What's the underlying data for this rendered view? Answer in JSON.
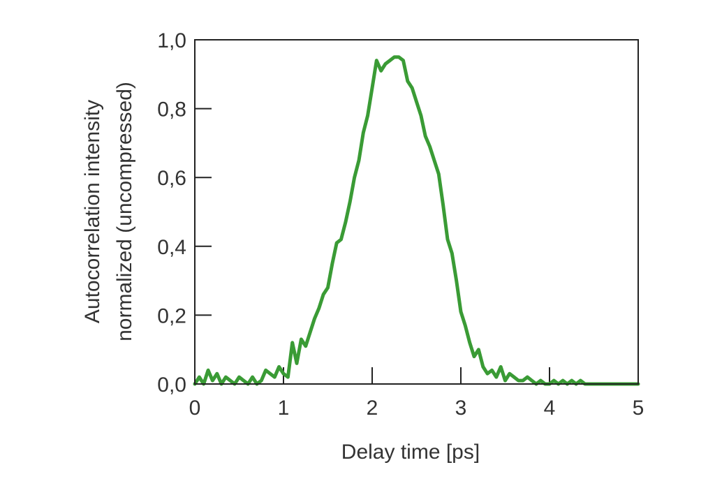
{
  "chart_data": {
    "type": "line",
    "title": "",
    "xlabel": "Delay time [ps]",
    "ylabel_line1": "Autocorrelation intensity",
    "ylabel_line2": "normalized (uncompressed)",
    "xlim": [
      0,
      5
    ],
    "ylim": [
      0,
      1
    ],
    "x_ticks": [
      {
        "value": 0,
        "label": "0"
      },
      {
        "value": 1,
        "label": "1"
      },
      {
        "value": 2,
        "label": "2"
      },
      {
        "value": 3,
        "label": "3"
      },
      {
        "value": 4,
        "label": "4"
      },
      {
        "value": 5,
        "label": "5"
      }
    ],
    "y_ticks": [
      {
        "value": 0.0,
        "label": "0,0"
      },
      {
        "value": 0.2,
        "label": "0,2"
      },
      {
        "value": 0.4,
        "label": "0,4"
      },
      {
        "value": 0.6,
        "label": "0,6"
      },
      {
        "value": 0.8,
        "label": "0,8"
      },
      {
        "value": 1.0,
        "label": "1,0"
      }
    ],
    "grid": false,
    "legend": "none",
    "series": [
      {
        "color": "#3a9b35",
        "x": [
          0.0,
          0.05,
          0.1,
          0.15,
          0.2,
          0.25,
          0.3,
          0.35,
          0.4,
          0.45,
          0.5,
          0.55,
          0.6,
          0.65,
          0.7,
          0.75,
          0.8,
          0.85,
          0.9,
          0.95,
          1.0,
          1.05,
          1.1,
          1.15,
          1.2,
          1.25,
          1.3,
          1.35,
          1.4,
          1.45,
          1.5,
          1.55,
          1.6,
          1.65,
          1.7,
          1.75,
          1.8,
          1.85,
          1.9,
          1.95,
          2.0,
          2.05,
          2.1,
          2.15,
          2.2,
          2.25,
          2.3,
          2.35,
          2.4,
          2.45,
          2.5,
          2.55,
          2.6,
          2.65,
          2.7,
          2.75,
          2.8,
          2.85,
          2.9,
          2.95,
          3.0,
          3.05,
          3.1,
          3.15,
          3.2,
          3.25,
          3.3,
          3.35,
          3.4,
          3.45,
          3.5,
          3.55,
          3.6,
          3.65,
          3.7,
          3.75,
          3.8,
          3.85,
          3.9,
          3.95,
          4.0,
          4.05,
          4.1,
          4.15,
          4.2,
          4.25,
          4.3,
          4.35,
          4.4,
          4.45,
          4.5,
          4.55,
          4.6,
          4.65,
          4.7,
          4.75,
          4.8,
          4.85,
          4.9,
          4.95,
          5.0
        ],
        "y": [
          0.0,
          0.02,
          0.0,
          0.04,
          0.01,
          0.03,
          0.0,
          0.02,
          0.01,
          0.0,
          0.02,
          0.01,
          0.0,
          0.02,
          0.0,
          0.01,
          0.04,
          0.03,
          0.02,
          0.05,
          0.03,
          0.02,
          0.12,
          0.06,
          0.13,
          0.11,
          0.15,
          0.19,
          0.22,
          0.26,
          0.28,
          0.35,
          0.41,
          0.42,
          0.47,
          0.53,
          0.6,
          0.65,
          0.73,
          0.78,
          0.86,
          0.94,
          0.91,
          0.93,
          0.94,
          0.95,
          0.95,
          0.94,
          0.88,
          0.86,
          0.82,
          0.78,
          0.72,
          0.69,
          0.65,
          0.61,
          0.52,
          0.42,
          0.38,
          0.3,
          0.21,
          0.17,
          0.12,
          0.08,
          0.1,
          0.05,
          0.03,
          0.04,
          0.02,
          0.05,
          0.01,
          0.03,
          0.02,
          0.01,
          0.01,
          0.02,
          0.01,
          0.0,
          0.01,
          0.0,
          0.0,
          0.01,
          0.0,
          0.01,
          0.0,
          0.01,
          0.0,
          0.01,
          0.0,
          0.0,
          0.0,
          0.0,
          0.0,
          0.0,
          0.0,
          0.0,
          0.0,
          0.0,
          0.0,
          0.0,
          0.0
        ]
      }
    ]
  }
}
